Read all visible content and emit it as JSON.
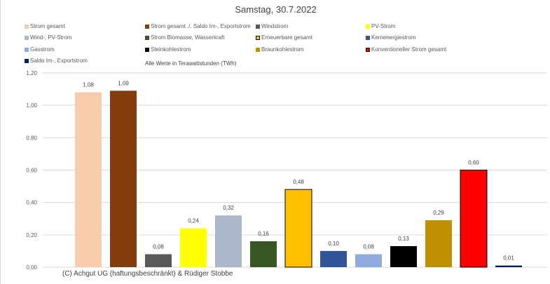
{
  "chart_data": {
    "type": "bar",
    "title": "Samstag, 30.7.2022",
    "note": "Alle Werte in Terawattstunden (TWh)",
    "copyright": "(C) Achgut UG (haftungsbeschränkt) & Rüdiger Stobbe",
    "ylim": [
      0,
      1.2
    ],
    "yticks": [
      "0,00",
      "0,20",
      "0,40",
      "0,60",
      "0,80",
      "1,00",
      "1,20"
    ],
    "grid": true,
    "legend_position": "top",
    "series": [
      {
        "name": "Strom gesamt",
        "value": 1.08,
        "label": "1,08",
        "color": "#f8cbad",
        "border": false
      },
      {
        "name": "Strom gesamt ./. Saldo Im-, Exportstrom",
        "value": 1.09,
        "label": "1,09",
        "color": "#843c0c",
        "border": false
      },
      {
        "name": "Windstrom",
        "value": 0.08,
        "label": "0,08",
        "color": "#595959",
        "border": false
      },
      {
        "name": "PV-Strom",
        "value": 0.24,
        "label": "0,24",
        "color": "#ffff00",
        "border": false
      },
      {
        "name": "Wind-, PV-Strom",
        "value": 0.32,
        "label": "0,32",
        "color": "#adb9ca",
        "border": false
      },
      {
        "name": "Strom Biomasse, Wasserkraft",
        "value": 0.16,
        "label": "0,16",
        "color": "#375623",
        "border": false
      },
      {
        "name": "Erneuerbare gesamt",
        "value": 0.48,
        "label": "0,48",
        "color": "#ffc000",
        "border": true
      },
      {
        "name": "Kernenergiestrom",
        "value": 0.1,
        "label": "0,10",
        "color": "#2f5597",
        "border": false
      },
      {
        "name": "Gasstrom",
        "value": 0.08,
        "label": "0,08",
        "color": "#8faadc",
        "border": false
      },
      {
        "name": "Steinkohlestrom",
        "value": 0.13,
        "label": "0,13",
        "color": "#000000",
        "border": false
      },
      {
        "name": "Braunkohlestrom",
        "value": 0.29,
        "label": "0,29",
        "color": "#bf9000",
        "border": false
      },
      {
        "name": "Konventioneller Strom gesamt",
        "value": 0.6,
        "label": "0,60",
        "color": "#ff0000",
        "border": true
      },
      {
        "name": "Saldo Im-, Exportstrom",
        "value": 0.01,
        "label": "0,01",
        "color": "#002060",
        "border": false
      }
    ]
  }
}
